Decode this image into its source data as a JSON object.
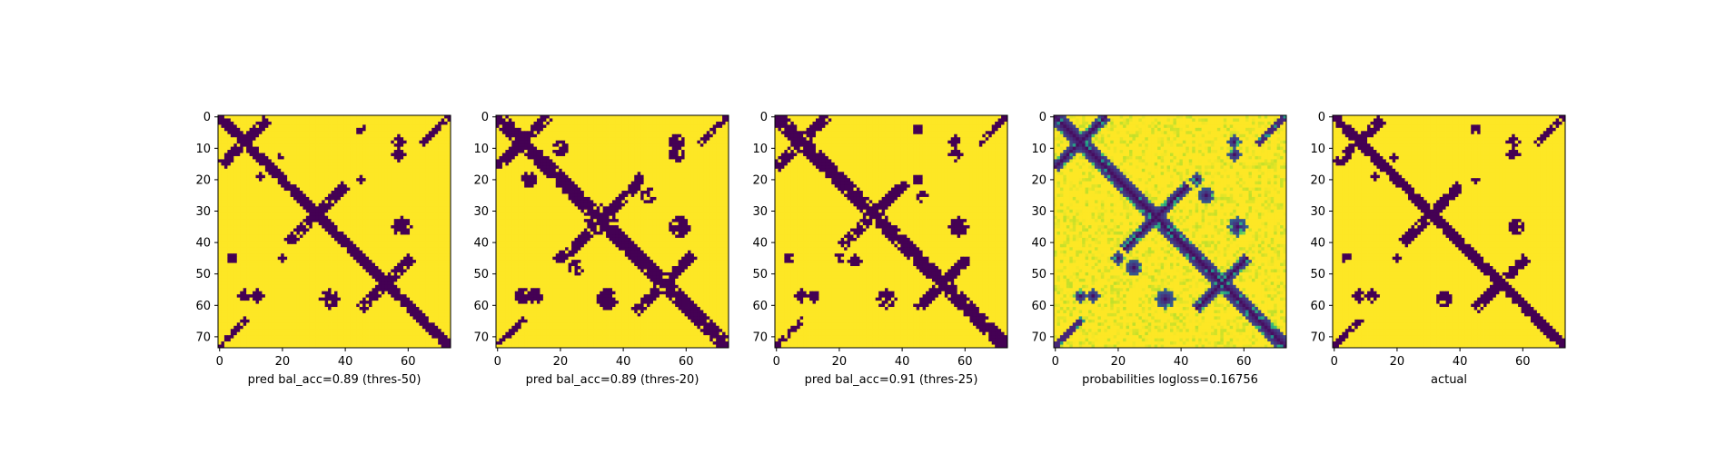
{
  "chart_data": [
    {
      "type": "heatmap",
      "title": "",
      "xlabel": "pred bal_acc=0.89 (thres-50)",
      "ylabel": "",
      "matrix_size": 74,
      "xlim": [
        0,
        73
      ],
      "ylim": [
        73,
        0
      ],
      "xticks": [
        0,
        20,
        40,
        60
      ],
      "yticks": [
        0,
        10,
        20,
        30,
        40,
        50,
        60,
        70
      ],
      "colormap": "viridis",
      "values_kind": "binary",
      "diagonal_band_width": 2.5,
      "anti_diagonal_contacts": [
        {
          "center": [
            8,
            8
          ],
          "length": 7
        },
        {
          "center": [
            31,
            31
          ],
          "length": 9
        },
        {
          "center": [
            53,
            53
          ],
          "length": 8
        }
      ],
      "blobs": [
        {
          "center": [
            35,
            58
          ],
          "radius": 3
        },
        {
          "center": [
            19,
            13
          ],
          "radius": 1.2
        },
        {
          "center": [
            45,
            20
          ],
          "radius": 1.3
        },
        {
          "center": [
            57,
            8
          ],
          "radius": 2
        },
        {
          "center": [
            12,
            57
          ],
          "radius": 2
        },
        {
          "center": [
            45,
            4
          ],
          "radius": 1.5
        }
      ]
    },
    {
      "type": "heatmap",
      "title": "",
      "xlabel": "pred bal_acc=0.89 (thres-20)",
      "ylabel": "",
      "matrix_size": 74,
      "xlim": [
        0,
        73
      ],
      "ylim": [
        73,
        0
      ],
      "xticks": [
        0,
        20,
        40,
        60
      ],
      "yticks": [
        0,
        10,
        20,
        30,
        40,
        50,
        60,
        70
      ],
      "colormap": "viridis",
      "values_kind": "binary",
      "diagonal_band_width": 3.2,
      "anti_diagonal_contacts": [
        {
          "center": [
            8,
            8
          ],
          "length": 8
        },
        {
          "center": [
            33,
            33
          ],
          "length": 11
        },
        {
          "center": [
            53,
            53
          ],
          "length": 9
        }
      ],
      "blobs": [
        {
          "center": [
            33,
            33
          ],
          "radius": 5
        },
        {
          "center": [
            20,
            10
          ],
          "radius": 2.5
        },
        {
          "center": [
            10,
            20
          ],
          "radius": 2.5
        },
        {
          "center": [
            35,
            58
          ],
          "radius": 3.5
        },
        {
          "center": [
            58,
            35
          ],
          "radius": 3
        },
        {
          "center": [
            45,
            20
          ],
          "radius": 2
        },
        {
          "center": [
            57,
            8
          ],
          "radius": 2.5
        },
        {
          "center": [
            12,
            57
          ],
          "radius": 2.5
        },
        {
          "center": [
            25,
            48
          ],
          "radius": 2.5
        },
        {
          "center": [
            48,
            25
          ],
          "radius": 2.5
        }
      ]
    },
    {
      "type": "heatmap",
      "title": "",
      "xlabel": "pred bal_acc=0.91 (thres-25)",
      "ylabel": "",
      "matrix_size": 74,
      "xlim": [
        0,
        73
      ],
      "ylim": [
        73,
        0
      ],
      "xticks": [
        0,
        20,
        40,
        60
      ],
      "yticks": [
        0,
        10,
        20,
        30,
        40,
        50,
        60,
        70
      ],
      "colormap": "viridis",
      "values_kind": "binary",
      "diagonal_band_width": 3,
      "anti_diagonal_contacts": [
        {
          "center": [
            8,
            8
          ],
          "length": 8
        },
        {
          "center": [
            31,
            31
          ],
          "length": 10
        },
        {
          "center": [
            53,
            53
          ],
          "length": 8
        }
      ],
      "blobs": [
        {
          "center": [
            31,
            31
          ],
          "radius": 3.5
        },
        {
          "center": [
            35,
            58
          ],
          "radius": 3
        },
        {
          "center": [
            45,
            20
          ],
          "radius": 1.8
        },
        {
          "center": [
            57,
            8
          ],
          "radius": 2.2
        },
        {
          "center": [
            12,
            57
          ],
          "radius": 2
        },
        {
          "center": [
            25,
            46
          ],
          "radius": 2
        },
        {
          "center": [
            45,
            4
          ],
          "radius": 1.5
        }
      ]
    },
    {
      "type": "heatmap",
      "title": "",
      "xlabel": "probabilities logloss=0.16756",
      "ylabel": "",
      "matrix_size": 74,
      "xlim": [
        0,
        73
      ],
      "ylim": [
        73,
        0
      ],
      "xticks": [
        0,
        20,
        40,
        60
      ],
      "yticks": [
        0,
        10,
        20,
        30,
        40,
        50,
        60,
        70
      ],
      "colormap": "viridis",
      "values_kind": "probability",
      "diagonal_band_width": 3,
      "anti_diagonal_contacts": [
        {
          "center": [
            8,
            8
          ],
          "length": 8
        },
        {
          "center": [
            32,
            32
          ],
          "length": 10
        },
        {
          "center": [
            53,
            53
          ],
          "length": 8
        }
      ],
      "blobs": [
        {
          "center": [
            35,
            58
          ],
          "radius": 3
        },
        {
          "center": [
            58,
            35
          ],
          "radius": 3
        },
        {
          "center": [
            45,
            20
          ],
          "radius": 2
        },
        {
          "center": [
            57,
            8
          ],
          "radius": 2
        },
        {
          "center": [
            12,
            57
          ],
          "radius": 2
        },
        {
          "center": [
            25,
            48
          ],
          "radius": 2.5
        },
        {
          "center": [
            48,
            25
          ],
          "radius": 2.5
        }
      ],
      "haze_level": 0.12
    },
    {
      "type": "heatmap",
      "title": "",
      "xlabel": "actual",
      "ylabel": "",
      "matrix_size": 74,
      "xlim": [
        0,
        73
      ],
      "ylim": [
        73,
        0
      ],
      "xticks": [
        0,
        20,
        40,
        60
      ],
      "yticks": [
        0,
        10,
        20,
        30,
        40,
        50,
        60,
        70
      ],
      "colormap": "viridis",
      "values_kind": "binary",
      "diagonal_band_width": 2.5,
      "anti_diagonal_contacts": [
        {
          "center": [
            8,
            8
          ],
          "length": 7
        },
        {
          "center": [
            31,
            31
          ],
          "length": 9
        },
        {
          "center": [
            53,
            53
          ],
          "length": 8
        }
      ],
      "blobs": [
        {
          "center": [
            35,
            58
          ],
          "radius": 2.5
        },
        {
          "center": [
            45,
            20
          ],
          "radius": 1.3
        },
        {
          "center": [
            57,
            8
          ],
          "radius": 2
        },
        {
          "center": [
            12,
            57
          ],
          "radius": 2
        },
        {
          "center": [
            45,
            4
          ],
          "radius": 1.5
        },
        {
          "center": [
            19,
            13
          ],
          "radius": 1
        }
      ]
    }
  ],
  "colors": {
    "viridis_low": "#440154",
    "viridis_high": "#fde725",
    "axis": "#000000",
    "background": "#ffffff"
  }
}
